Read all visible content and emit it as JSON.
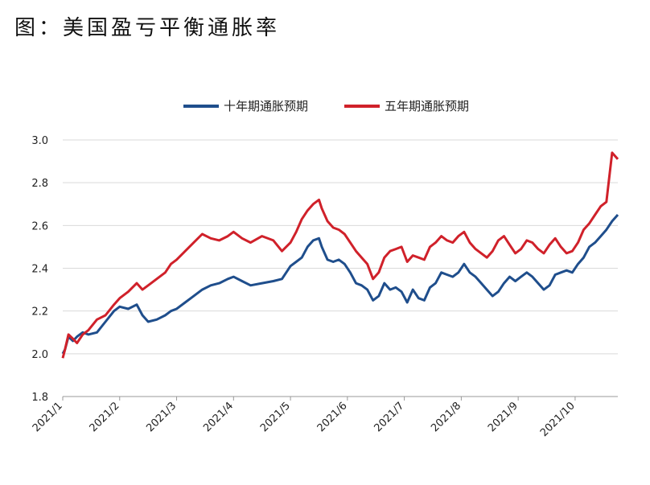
{
  "title": "图：美国盈亏平衡通胀率",
  "chart_data": {
    "type": "line",
    "title": "图：美国盈亏平衡通胀率",
    "xlabel": "",
    "ylabel": "",
    "ylim": [
      1.8,
      3.0
    ],
    "yticks": [
      1.8,
      2.0,
      2.2,
      2.4,
      2.6,
      2.8,
      3.0
    ],
    "xticks": [
      "2021/1",
      "2021/2",
      "2021/3",
      "2021/4",
      "2021/5",
      "2021/6",
      "2021/7",
      "2021/8",
      "2021/9",
      "2021/10"
    ],
    "grid": "horizontal",
    "legend_position": "top",
    "series": [
      {
        "name": "十年期通胀预期",
        "color": "#1f4e8c",
        "points": [
          [
            0.0,
            2.0
          ],
          [
            0.04,
            2.02
          ],
          [
            0.1,
            2.08
          ],
          [
            0.18,
            2.06
          ],
          [
            0.25,
            2.08
          ],
          [
            0.35,
            2.1
          ],
          [
            0.45,
            2.09
          ],
          [
            0.6,
            2.1
          ],
          [
            0.75,
            2.15
          ],
          [
            0.9,
            2.2
          ],
          [
            1.0,
            2.22
          ],
          [
            1.15,
            2.21
          ],
          [
            1.3,
            2.23
          ],
          [
            1.4,
            2.18
          ],
          [
            1.5,
            2.15
          ],
          [
            1.65,
            2.16
          ],
          [
            1.8,
            2.18
          ],
          [
            1.9,
            2.2
          ],
          [
            2.0,
            2.21
          ],
          [
            2.15,
            2.24
          ],
          [
            2.3,
            2.27
          ],
          [
            2.45,
            2.3
          ],
          [
            2.6,
            2.32
          ],
          [
            2.75,
            2.33
          ],
          [
            2.9,
            2.35
          ],
          [
            3.0,
            2.36
          ],
          [
            3.15,
            2.34
          ],
          [
            3.3,
            2.32
          ],
          [
            3.5,
            2.33
          ],
          [
            3.7,
            2.34
          ],
          [
            3.85,
            2.35
          ],
          [
            4.0,
            2.41
          ],
          [
            4.1,
            2.43
          ],
          [
            4.2,
            2.45
          ],
          [
            4.3,
            2.5
          ],
          [
            4.4,
            2.53
          ],
          [
            4.5,
            2.54
          ],
          [
            4.55,
            2.5
          ],
          [
            4.65,
            2.44
          ],
          [
            4.75,
            2.43
          ],
          [
            4.85,
            2.44
          ],
          [
            4.95,
            2.42
          ],
          [
            5.05,
            2.38
          ],
          [
            5.15,
            2.33
          ],
          [
            5.25,
            2.32
          ],
          [
            5.35,
            2.3
          ],
          [
            5.45,
            2.25
          ],
          [
            5.55,
            2.27
          ],
          [
            5.65,
            2.33
          ],
          [
            5.75,
            2.3
          ],
          [
            5.85,
            2.31
          ],
          [
            5.95,
            2.29
          ],
          [
            6.05,
            2.24
          ],
          [
            6.15,
            2.3
          ],
          [
            6.25,
            2.26
          ],
          [
            6.35,
            2.25
          ],
          [
            6.45,
            2.31
          ],
          [
            6.55,
            2.33
          ],
          [
            6.65,
            2.38
          ],
          [
            6.75,
            2.37
          ],
          [
            6.85,
            2.36
          ],
          [
            6.95,
            2.38
          ],
          [
            7.05,
            2.42
          ],
          [
            7.15,
            2.38
          ],
          [
            7.25,
            2.36
          ],
          [
            7.35,
            2.33
          ],
          [
            7.45,
            2.3
          ],
          [
            7.55,
            2.27
          ],
          [
            7.65,
            2.29
          ],
          [
            7.75,
            2.33
          ],
          [
            7.85,
            2.36
          ],
          [
            7.95,
            2.34
          ],
          [
            8.05,
            2.36
          ],
          [
            8.15,
            2.38
          ],
          [
            8.25,
            2.36
          ],
          [
            8.35,
            2.33
          ],
          [
            8.45,
            2.3
          ],
          [
            8.55,
            2.32
          ],
          [
            8.65,
            2.37
          ],
          [
            8.75,
            2.38
          ],
          [
            8.85,
            2.39
          ],
          [
            8.95,
            2.38
          ],
          [
            9.05,
            2.42
          ],
          [
            9.15,
            2.45
          ],
          [
            9.25,
            2.5
          ],
          [
            9.35,
            2.52
          ],
          [
            9.45,
            2.55
          ],
          [
            9.55,
            2.58
          ],
          [
            9.65,
            2.62
          ],
          [
            9.75,
            2.65
          ]
        ]
      },
      {
        "name": "五年期通胀预期",
        "color": "#d0212a",
        "points": [
          [
            0.0,
            1.98
          ],
          [
            0.04,
            2.02
          ],
          [
            0.1,
            2.09
          ],
          [
            0.18,
            2.07
          ],
          [
            0.25,
            2.05
          ],
          [
            0.35,
            2.09
          ],
          [
            0.45,
            2.11
          ],
          [
            0.6,
            2.16
          ],
          [
            0.75,
            2.18
          ],
          [
            0.9,
            2.23
          ],
          [
            1.0,
            2.26
          ],
          [
            1.15,
            2.29
          ],
          [
            1.3,
            2.33
          ],
          [
            1.4,
            2.3
          ],
          [
            1.5,
            2.32
          ],
          [
            1.65,
            2.35
          ],
          [
            1.8,
            2.38
          ],
          [
            1.9,
            2.42
          ],
          [
            2.0,
            2.44
          ],
          [
            2.15,
            2.48
          ],
          [
            2.3,
            2.52
          ],
          [
            2.45,
            2.56
          ],
          [
            2.6,
            2.54
          ],
          [
            2.75,
            2.53
          ],
          [
            2.9,
            2.55
          ],
          [
            3.0,
            2.57
          ],
          [
            3.15,
            2.54
          ],
          [
            3.3,
            2.52
          ],
          [
            3.5,
            2.55
          ],
          [
            3.7,
            2.53
          ],
          [
            3.85,
            2.48
          ],
          [
            4.0,
            2.52
          ],
          [
            4.1,
            2.57
          ],
          [
            4.2,
            2.63
          ],
          [
            4.3,
            2.67
          ],
          [
            4.4,
            2.7
          ],
          [
            4.5,
            2.72
          ],
          [
            4.55,
            2.68
          ],
          [
            4.65,
            2.62
          ],
          [
            4.75,
            2.59
          ],
          [
            4.85,
            2.58
          ],
          [
            4.95,
            2.56
          ],
          [
            5.05,
            2.52
          ],
          [
            5.15,
            2.48
          ],
          [
            5.25,
            2.45
          ],
          [
            5.35,
            2.42
          ],
          [
            5.45,
            2.35
          ],
          [
            5.55,
            2.38
          ],
          [
            5.65,
            2.45
          ],
          [
            5.75,
            2.48
          ],
          [
            5.85,
            2.49
          ],
          [
            5.95,
            2.5
          ],
          [
            6.05,
            2.43
          ],
          [
            6.15,
            2.46
          ],
          [
            6.25,
            2.45
          ],
          [
            6.35,
            2.44
          ],
          [
            6.45,
            2.5
          ],
          [
            6.55,
            2.52
          ],
          [
            6.65,
            2.55
          ],
          [
            6.75,
            2.53
          ],
          [
            6.85,
            2.52
          ],
          [
            6.95,
            2.55
          ],
          [
            7.05,
            2.57
          ],
          [
            7.15,
            2.52
          ],
          [
            7.25,
            2.49
          ],
          [
            7.35,
            2.47
          ],
          [
            7.45,
            2.45
          ],
          [
            7.55,
            2.48
          ],
          [
            7.65,
            2.53
          ],
          [
            7.75,
            2.55
          ],
          [
            7.85,
            2.51
          ],
          [
            7.95,
            2.47
          ],
          [
            8.05,
            2.49
          ],
          [
            8.15,
            2.53
          ],
          [
            8.25,
            2.52
          ],
          [
            8.35,
            2.49
          ],
          [
            8.45,
            2.47
          ],
          [
            8.55,
            2.51
          ],
          [
            8.65,
            2.54
          ],
          [
            8.75,
            2.5
          ],
          [
            8.85,
            2.47
          ],
          [
            8.95,
            2.48
          ],
          [
            9.05,
            2.52
          ],
          [
            9.15,
            2.58
          ],
          [
            9.25,
            2.61
          ],
          [
            9.35,
            2.65
          ],
          [
            9.45,
            2.69
          ],
          [
            9.55,
            2.71
          ],
          [
            9.65,
            2.94
          ],
          [
            9.75,
            2.91
          ]
        ]
      }
    ]
  }
}
